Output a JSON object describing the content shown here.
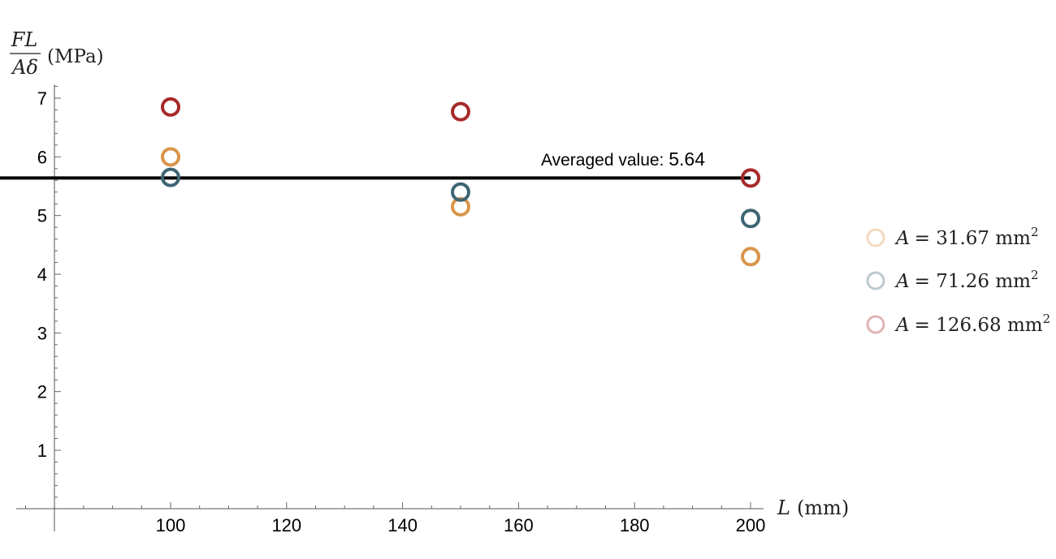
{
  "chart_data": {
    "type": "scatter",
    "title": "",
    "ylabel": {
      "numerator": "FL",
      "denominator": "Aδ",
      "unit": "(MPa)"
    },
    "xlabel": {
      "symbol": "L",
      "unit": "(mm)"
    },
    "xlim": [
      62,
      200
    ],
    "ylim": [
      0,
      7.2
    ],
    "x_ticks": [
      100,
      120,
      140,
      160,
      180,
      200
    ],
    "y_ticks": [
      1,
      2,
      3,
      4,
      5,
      6,
      7
    ],
    "grid": false,
    "legend_position": "right",
    "series": [
      {
        "name": "A = 31.67 mm²",
        "legend_symbol": "A",
        "legend_value": "= 31.67 mm",
        "legend_exp": "2",
        "color": "#D9954A",
        "x": [
          100,
          150,
          200
        ],
        "y": [
          6.0,
          5.15,
          4.3
        ]
      },
      {
        "name": "A = 71.26 mm²",
        "legend_symbol": "A",
        "legend_value": "= 71.26 mm",
        "legend_exp": "2",
        "color": "#3E6574",
        "x": [
          100,
          150,
          200
        ],
        "y": [
          5.65,
          5.4,
          4.95
        ]
      },
      {
        "name": "A = 126.68 mm²",
        "legend_symbol": "A",
        "legend_value": "= 126.68 mm",
        "legend_exp": "2",
        "color": "#A62A2A",
        "x": [
          100,
          150,
          200
        ],
        "y": [
          6.85,
          6.77,
          5.64
        ]
      }
    ],
    "average_line": {
      "value": 5.64,
      "label_prefix": "Averaged value: ",
      "label_value": "5.64",
      "x_start": 62,
      "x_end": 200,
      "color": "#000000"
    }
  }
}
